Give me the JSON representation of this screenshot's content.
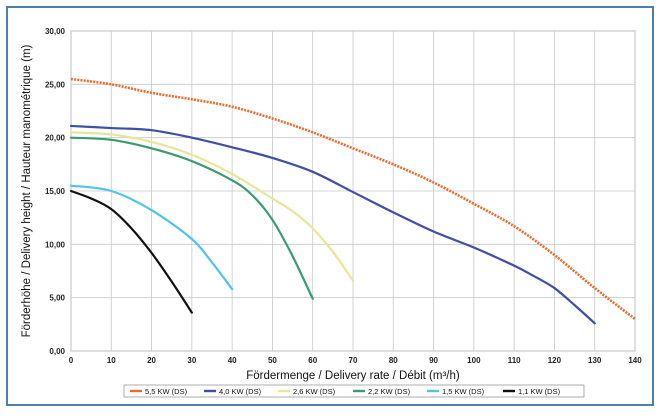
{
  "chart_data": {
    "type": "line",
    "xlabel": "Fördermenge / Delivery rate / Débit (m³/h)",
    "ylabel": "Förderhöhe / Delivery height / Hauteur manométrique (m)",
    "xlim": [
      0,
      140
    ],
    "ylim": [
      0,
      30
    ],
    "x_ticks": [
      0,
      10,
      20,
      30,
      40,
      50,
      60,
      70,
      80,
      90,
      100,
      110,
      120,
      130,
      140
    ],
    "y_ticks": [
      0,
      5,
      10,
      15,
      20,
      25,
      30
    ],
    "y_tick_labels": [
      "0,00",
      "5,00",
      "10,00",
      "15,00",
      "20,00",
      "25,00",
      "30,00"
    ],
    "grid": true,
    "legend_position": "bottom",
    "series": [
      {
        "name": "5,5 KW (DS)",
        "color": "#ee6a2a",
        "dashed": true,
        "x": [
          0,
          10,
          20,
          30,
          40,
          50,
          60,
          70,
          80,
          90,
          100,
          110,
          120,
          130,
          140
        ],
        "y": [
          25.5,
          25.0,
          24.2,
          23.6,
          22.9,
          21.8,
          20.5,
          19.0,
          17.5,
          15.8,
          13.8,
          11.7,
          9.0,
          5.9,
          3.0
        ]
      },
      {
        "name": "4,0 KW (DS)",
        "color": "#3d4fa6",
        "dashed": false,
        "x": [
          0,
          10,
          20,
          30,
          40,
          50,
          60,
          70,
          80,
          90,
          100,
          110,
          115,
          120,
          125,
          130
        ],
        "y": [
          21.1,
          20.9,
          20.7,
          20.0,
          19.1,
          18.1,
          16.8,
          14.9,
          13.0,
          11.2,
          9.7,
          8.0,
          7.0,
          5.9,
          4.3,
          2.6
        ]
      },
      {
        "name": "2,6 KW (DS)",
        "color": "#e9e59a",
        "dashed": false,
        "x": [
          0,
          10,
          20,
          30,
          40,
          50,
          55,
          60,
          65,
          70
        ],
        "y": [
          20.5,
          20.3,
          19.6,
          18.4,
          16.6,
          14.3,
          13.1,
          11.5,
          9.3,
          6.6
        ]
      },
      {
        "name": "2,2 KW (DS)",
        "color": "#3a9a72",
        "dashed": false,
        "x": [
          0,
          10,
          20,
          30,
          40,
          45,
          50,
          55,
          60
        ],
        "y": [
          20.0,
          19.8,
          19.0,
          17.8,
          16.0,
          14.6,
          12.3,
          8.9,
          4.9
        ]
      },
      {
        "name": "1,5 KW (DS)",
        "color": "#4fc3ea",
        "dashed": false,
        "x": [
          0,
          10,
          20,
          30,
          35,
          40
        ],
        "y": [
          15.5,
          15.0,
          13.2,
          10.5,
          8.3,
          5.8
        ]
      },
      {
        "name": "1,1 KW (DS)",
        "color": "#111111",
        "dashed": false,
        "x": [
          0,
          5,
          10,
          15,
          20,
          25,
          30
        ],
        "y": [
          15.0,
          14.3,
          13.3,
          11.5,
          9.2,
          6.5,
          3.6
        ]
      }
    ]
  }
}
